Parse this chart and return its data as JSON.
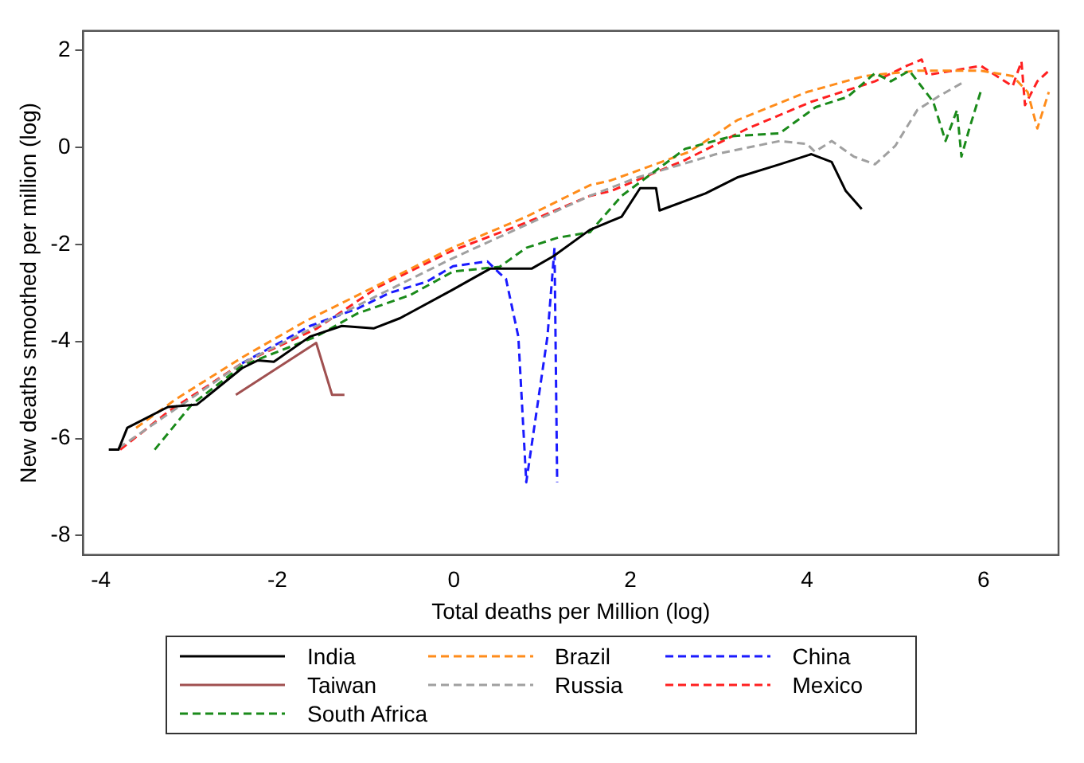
{
  "chart_data": {
    "type": "line",
    "xlabel": "Total deaths per Million (log)",
    "ylabel": "New deaths smoothed per million (log)",
    "xlim": [
      -4.2,
      6.85
    ],
    "ylim": [
      -8.4,
      2.4
    ],
    "xticks": [
      -4,
      -2,
      0,
      2,
      4,
      6
    ],
    "yticks": [
      -8,
      -6,
      -4,
      -2,
      0,
      2
    ],
    "grid": false,
    "legend": "bottom",
    "marker": "none",
    "series": [
      {
        "name": "India",
        "color": "#000000",
        "line_style": "solid",
        "x": [
          -3.91,
          -3.8,
          -3.7,
          -3.24,
          -2.91,
          -2.4,
          -2.22,
          -2.04,
          -1.63,
          -1.27,
          -0.91,
          -0.61,
          -0.02,
          0.41,
          0.88,
          1.13,
          1.54,
          1.9,
          2.11,
          2.29,
          2.33,
          2.85,
          3.21,
          3.69,
          4.05,
          4.28,
          4.44,
          4.62
        ],
        "values": [
          -6.23,
          -6.23,
          -5.78,
          -5.35,
          -5.3,
          -4.55,
          -4.39,
          -4.42,
          -3.9,
          -3.68,
          -3.73,
          -3.52,
          -2.94,
          -2.5,
          -2.5,
          -2.24,
          -1.7,
          -1.43,
          -0.84,
          -0.84,
          -1.3,
          -0.95,
          -0.62,
          -0.35,
          -0.14,
          -0.3,
          -0.9,
          -1.27
        ]
      },
      {
        "name": "Taiwan",
        "color": "#a05050",
        "line_style": "solid",
        "x": [
          -2.47,
          -1.56,
          -1.38,
          -1.24
        ],
        "values": [
          -5.1,
          -4.03,
          -5.1,
          -5.1
        ]
      },
      {
        "name": "South Africa",
        "color": "#1a8a1a",
        "line_style": "dashed",
        "x": [
          -3.39,
          -2.97,
          -2.4,
          -1.56,
          -1.09,
          -0.49,
          -0.01,
          0.52,
          0.82,
          1.18,
          1.54,
          1.9,
          2.62,
          3.15,
          3.69,
          4.1,
          4.46,
          4.77,
          4.95,
          5.16,
          5.43,
          5.57,
          5.7,
          5.75,
          5.84,
          5.97
        ],
        "values": [
          -6.23,
          -5.3,
          -4.5,
          -3.9,
          -3.42,
          -3.04,
          -2.56,
          -2.46,
          -2.07,
          -1.86,
          -1.75,
          -1.0,
          -0.03,
          0.23,
          0.29,
          0.83,
          1.04,
          1.53,
          1.36,
          1.58,
          0.94,
          0.13,
          0.77,
          -0.19,
          0.39,
          1.16
        ]
      },
      {
        "name": "Brazil",
        "color": "#ff8c1a",
        "line_style": "dashed",
        "x": [
          -3.6,
          -3.15,
          -2.4,
          -1.68,
          -0.85,
          -0.02,
          0.82,
          1.54,
          1.78,
          2.67,
          3.21,
          4.0,
          4.65,
          5.25,
          5.97,
          6.33,
          6.5,
          6.61,
          6.74
        ],
        "values": [
          -5.78,
          -5.19,
          -4.33,
          -3.58,
          -2.83,
          -2.07,
          -1.43,
          -0.78,
          -0.68,
          -0.09,
          0.56,
          1.14,
          1.47,
          1.58,
          1.58,
          1.47,
          1.14,
          0.39,
          1.14
        ]
      },
      {
        "name": "Russia",
        "color": "#a0a0a0",
        "line_style": "dashed",
        "x": [
          -3.8,
          -2.4,
          -0.85,
          -0.02,
          1.54,
          2.08,
          2.97,
          3.69,
          4.0,
          4.09,
          4.28,
          4.53,
          4.77,
          5.0,
          5.25,
          5.48,
          5.75
        ],
        "values": [
          -6.2,
          -4.45,
          -3.04,
          -2.29,
          -1.0,
          -0.62,
          -0.14,
          0.13,
          0.07,
          -0.09,
          0.13,
          -0.19,
          -0.35,
          0.03,
          0.77,
          1.04,
          1.32
        ]
      },
      {
        "name": "China",
        "color": "#1a1aff",
        "line_style": "dashed",
        "x": [
          -2.4,
          -1.63,
          -1.09,
          -0.73,
          -0.31,
          -0.01,
          0.38,
          0.52,
          0.59,
          0.73,
          0.82,
          1.06,
          1.14,
          1.17
        ],
        "values": [
          -4.45,
          -3.68,
          -3.32,
          -3.0,
          -2.77,
          -2.45,
          -2.35,
          -2.6,
          -2.71,
          -3.9,
          -6.9,
          -3.9,
          -2.07,
          -6.9
        ]
      },
      {
        "name": "Mexico",
        "color": "#ff2020",
        "line_style": "dashed",
        "x": [
          -3.78,
          -3.24,
          -2.4,
          -1.56,
          -0.85,
          -0.02,
          0.82,
          1.54,
          1.78,
          2.62,
          3.33,
          4.05,
          4.77,
          5.13,
          5.3,
          5.36,
          5.97,
          6.33,
          6.43,
          6.47,
          6.61,
          6.74
        ],
        "values": [
          -6.23,
          -5.45,
          -4.45,
          -3.74,
          -2.87,
          -2.13,
          -1.55,
          -1.0,
          -0.9,
          -0.26,
          0.39,
          0.94,
          1.36,
          1.68,
          1.81,
          1.49,
          1.68,
          1.26,
          1.77,
          0.87,
          1.36,
          1.58
        ]
      }
    ]
  }
}
